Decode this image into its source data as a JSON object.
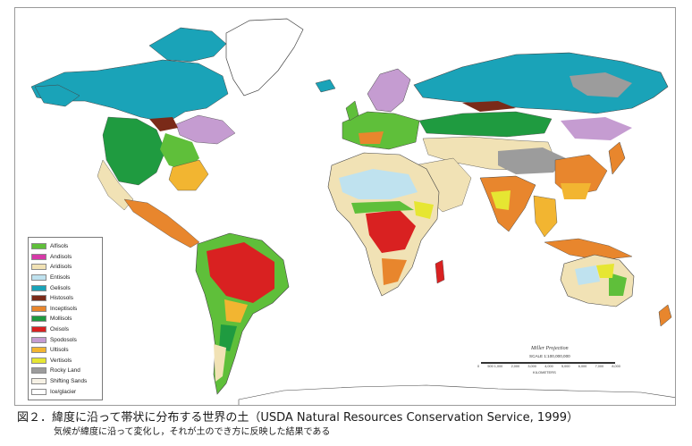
{
  "map": {
    "projection_label": "Miller Projection",
    "scale_label": "SCALE 1:100,000,000",
    "scale_ticks": [
      "0",
      "500 1,000",
      "2,000",
      "3,000",
      "4,000",
      "5,000",
      "6,000",
      "7,000",
      "8,000"
    ],
    "scale_unit": "KILOMETERS",
    "ocean_color": "#ffffff",
    "coastline_color": "#444444"
  },
  "legend": [
    {
      "label": "Alfisols",
      "color": "#5fbf3a"
    },
    {
      "label": "Andisols",
      "color": "#d63aa8"
    },
    {
      "label": "Aridisols",
      "color": "#f1e2b5"
    },
    {
      "label": "Entisols",
      "color": "#bfe2ef"
    },
    {
      "label": "Gelisols",
      "color": "#1aa3b8"
    },
    {
      "label": "Histosols",
      "color": "#7a2a18"
    },
    {
      "label": "Inceptisols",
      "color": "#e8862d"
    },
    {
      "label": "Mollisols",
      "color": "#1f9b40"
    },
    {
      "label": "Oxisols",
      "color": "#d92121"
    },
    {
      "label": "Spodosols",
      "color": "#c59cd1"
    },
    {
      "label": "Ultisols",
      "color": "#f2b531"
    },
    {
      "label": "Vertisols",
      "color": "#e6e632"
    },
    {
      "label": "Rocky Land",
      "color": "#9c9c9c"
    },
    {
      "label": "Shifting Sands",
      "color": "#f6f1e5"
    },
    {
      "label": "Ice/glacier",
      "color": "#ffffff"
    }
  ],
  "caption": {
    "title": "図２．緯度に沿って帯状に分布する世界の土（USDA Natural Resources Conservation Service, 1999）",
    "subtitle": "気候が緯度に沿って変化し，それが土のでき方に反映した結果である"
  }
}
